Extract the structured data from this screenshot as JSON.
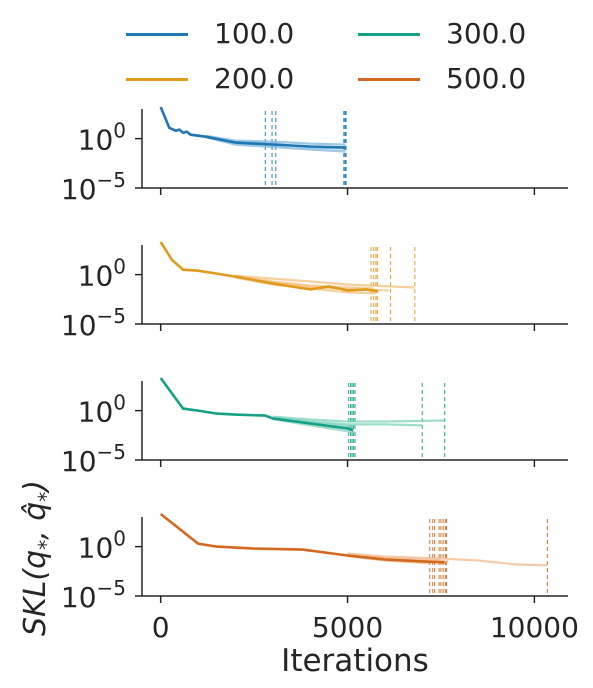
{
  "chart_data": {
    "type": "line",
    "xlabel": "Iterations",
    "ylabel": "SKL(q⁎, q̂⁎)",
    "ylabel_parts": {
      "lead": "SKL(q",
      "hat": "q̂",
      "tail": ")",
      "star": "*"
    },
    "xlim": [
      -500,
      10900
    ],
    "xticks": [
      0,
      5000,
      10000
    ],
    "xtick_labels": [
      "0",
      "5000",
      "10000"
    ],
    "y_scale": "log",
    "ylim_log10": [
      -5,
      3
    ],
    "yticks_log10": [
      0,
      -5
    ],
    "ytick_labels": [
      {
        "base": "10",
        "exp": "0"
      },
      {
        "base": "10",
        "exp": "−5"
      }
    ],
    "legend": {
      "placement": "top",
      "entries": [
        {
          "label": "100.0",
          "color": "#1f78b4"
        },
        {
          "label": "200.0",
          "color": "#e09a1d"
        },
        {
          "label": "300.0",
          "color": "#16a085"
        },
        {
          "label": "500.0",
          "color": "#d2691e"
        }
      ]
    },
    "panels": [
      {
        "series_name": "100.0",
        "color": "#1f78b4",
        "light_color": "#7fb6dc",
        "main_curve": [
          [
            0,
            3.2
          ],
          [
            230,
            1.1
          ],
          [
            400,
            0.8
          ],
          [
            500,
            0.9
          ],
          [
            600,
            0.6
          ],
          [
            700,
            0.7
          ],
          [
            800,
            0.4
          ],
          [
            1200,
            0.2
          ],
          [
            2000,
            -0.4
          ],
          [
            3000,
            -0.6
          ],
          [
            4000,
            -0.8
          ],
          [
            4950,
            -0.9
          ]
        ],
        "extra_curves": [
          [
            [
              1200,
              0.3
            ],
            [
              2000,
              -0.2
            ],
            [
              3000,
              -0.3
            ],
            [
              4000,
              -0.5
            ],
            [
              4950,
              -0.6
            ]
          ],
          [
            [
              1200,
              0.15
            ],
            [
              2000,
              -0.6
            ],
            [
              3000,
              -0.85
            ],
            [
              4000,
              -1.1
            ],
            [
              4950,
              -1.3
            ]
          ],
          [
            [
              1200,
              0.25
            ],
            [
              2000,
              -0.35
            ],
            [
              3000,
              -0.5
            ],
            [
              4000,
              -0.9
            ],
            [
              4950,
              -1.0
            ]
          ]
        ],
        "stop_iterations": [
          2800,
          2980,
          3080,
          4900,
          4930,
          4950,
          4960
        ]
      },
      {
        "series_name": "200.0",
        "color": "#e09a1d",
        "light_color": "#f2c27c",
        "main_curve": [
          [
            0,
            3.3
          ],
          [
            300,
            1.5
          ],
          [
            600,
            0.5
          ],
          [
            1000,
            0.4
          ],
          [
            1500,
            0.1
          ],
          [
            2000,
            -0.2
          ],
          [
            3000,
            -0.9
          ],
          [
            4000,
            -1.5
          ],
          [
            4500,
            -1.2
          ],
          [
            5000,
            -1.6
          ],
          [
            5500,
            -1.5
          ],
          [
            5800,
            -1.7
          ]
        ],
        "extra_curves": [
          [
            [
              2000,
              -0.1
            ],
            [
              3000,
              -0.4
            ],
            [
              4000,
              -0.7
            ],
            [
              5000,
              -1.0
            ],
            [
              6200,
              -1.2
            ],
            [
              6800,
              -1.3
            ]
          ],
          [
            [
              2000,
              -0.3
            ],
            [
              3000,
              -1.0
            ],
            [
              4000,
              -1.4
            ],
            [
              5000,
              -1.8
            ],
            [
              5750,
              -1.9
            ]
          ],
          [
            [
              2000,
              -0.15
            ],
            [
              3000,
              -0.7
            ],
            [
              4000,
              -1.1
            ],
            [
              5000,
              -1.3
            ],
            [
              5700,
              -1.4
            ]
          ],
          [
            [
              2000,
              -0.25
            ],
            [
              3000,
              -0.8
            ],
            [
              4000,
              -1.2
            ],
            [
              5000,
              -1.5
            ],
            [
              6100,
              -1.6
            ]
          ]
        ],
        "stop_iterations": [
          5630,
          5700,
          5760,
          5800,
          6150,
          6800
        ]
      },
      {
        "series_name": "300.0",
        "color": "#16a085",
        "light_color": "#7fd1bb",
        "main_curve": [
          [
            0,
            3.3
          ],
          [
            600,
            0.2
          ],
          [
            1000,
            0.0
          ],
          [
            1500,
            -0.3
          ],
          [
            2000,
            -0.4
          ],
          [
            2800,
            -0.5
          ],
          [
            3000,
            -0.8
          ],
          [
            4000,
            -1.3
          ],
          [
            5000,
            -1.8
          ],
          [
            5150,
            -2.0
          ]
        ],
        "extra_curves": [
          [
            [
              3000,
              -0.6
            ],
            [
              4000,
              -0.9
            ],
            [
              5000,
              -1.1
            ],
            [
              6000,
              -1.1
            ],
            [
              7600,
              -1.0
            ]
          ],
          [
            [
              3000,
              -0.7
            ],
            [
              4000,
              -1.1
            ],
            [
              5000,
              -1.4
            ],
            [
              6000,
              -1.4
            ],
            [
              7000,
              -1.5
            ]
          ],
          [
            [
              3000,
              -0.75
            ],
            [
              4000,
              -1.2
            ],
            [
              5100,
              -1.6
            ]
          ],
          [
            [
              3000,
              -0.85
            ],
            [
              4000,
              -1.5
            ],
            [
              5200,
              -2.2
            ]
          ]
        ],
        "stop_iterations": [
          5030,
          5080,
          5120,
          5160,
          5200,
          7000,
          7600
        ]
      },
      {
        "series_name": "500.0",
        "color": "#d2691e",
        "light_color": "#f0b98f",
        "main_curve": [
          [
            0,
            3.3
          ],
          [
            1000,
            0.3
          ],
          [
            1500,
            0.0
          ],
          [
            2500,
            -0.2
          ],
          [
            3800,
            -0.3
          ],
          [
            5000,
            -0.9
          ],
          [
            6000,
            -1.3
          ],
          [
            7000,
            -1.5
          ],
          [
            7600,
            -1.6
          ]
        ],
        "extra_curves": [
          [
            [
              5000,
              -0.7
            ],
            [
              6000,
              -1.0
            ],
            [
              7500,
              -1.2
            ],
            [
              8500,
              -1.4
            ],
            [
              9500,
              -1.8
            ],
            [
              10350,
              -1.9
            ]
          ],
          [
            [
              5000,
              -0.8
            ],
            [
              6000,
              -1.15
            ],
            [
              7000,
              -1.3
            ],
            [
              7500,
              -1.35
            ]
          ],
          [
            [
              5000,
              -0.85
            ],
            [
              6000,
              -1.2
            ],
            [
              7000,
              -1.45
            ],
            [
              7700,
              -1.5
            ]
          ],
          [
            [
              5000,
              -0.95
            ],
            [
              6000,
              -1.4
            ],
            [
              7200,
              -1.7
            ]
          ]
        ],
        "stop_iterations": [
          7200,
          7280,
          7330,
          7450,
          7500,
          7560,
          7620,
          7650,
          10350
        ]
      }
    ]
  }
}
